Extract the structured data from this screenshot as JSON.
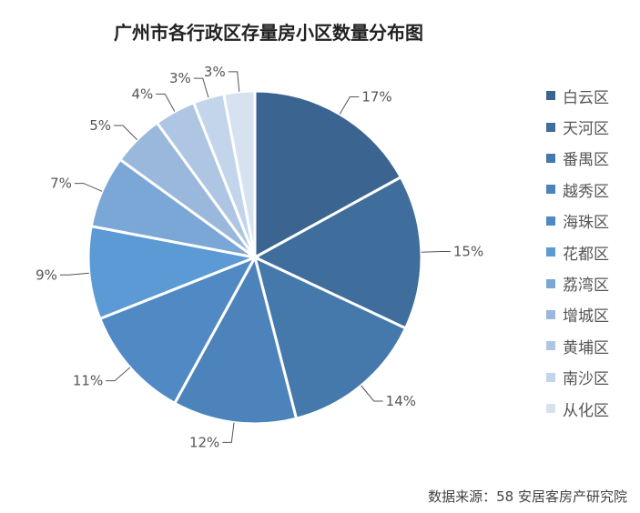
{
  "chart_data": {
    "type": "pie",
    "title": "广州市各行政区存量房小区数量分布图",
    "categories": [
      "白云区",
      "天河区",
      "番禺区",
      "越秀区",
      "海珠区",
      "花都区",
      "荔湾区",
      "增城区",
      "黄埔区",
      "南沙区",
      "从化区"
    ],
    "values": [
      17,
      15,
      14,
      12,
      11,
      9,
      7,
      5,
      4,
      3,
      3
    ],
    "value_labels": [
      "17%",
      "15%",
      "14%",
      "12%",
      "11%",
      "9%",
      "7%",
      "5%",
      "4%",
      "3%",
      "3%"
    ],
    "colors": [
      "#3b6590",
      "#3f6d9c",
      "#4579ac",
      "#4c83bb",
      "#5189c4",
      "#5b9ad4",
      "#7ba7d6",
      "#9ab8dc",
      "#aec6e3",
      "#c3d5eb",
      "#d7e2f1"
    ],
    "start_angle": "12 o'clock",
    "direction": "clockwise",
    "legend_position": "right"
  },
  "source_note": "数据来源：58 安居客房产研究院"
}
